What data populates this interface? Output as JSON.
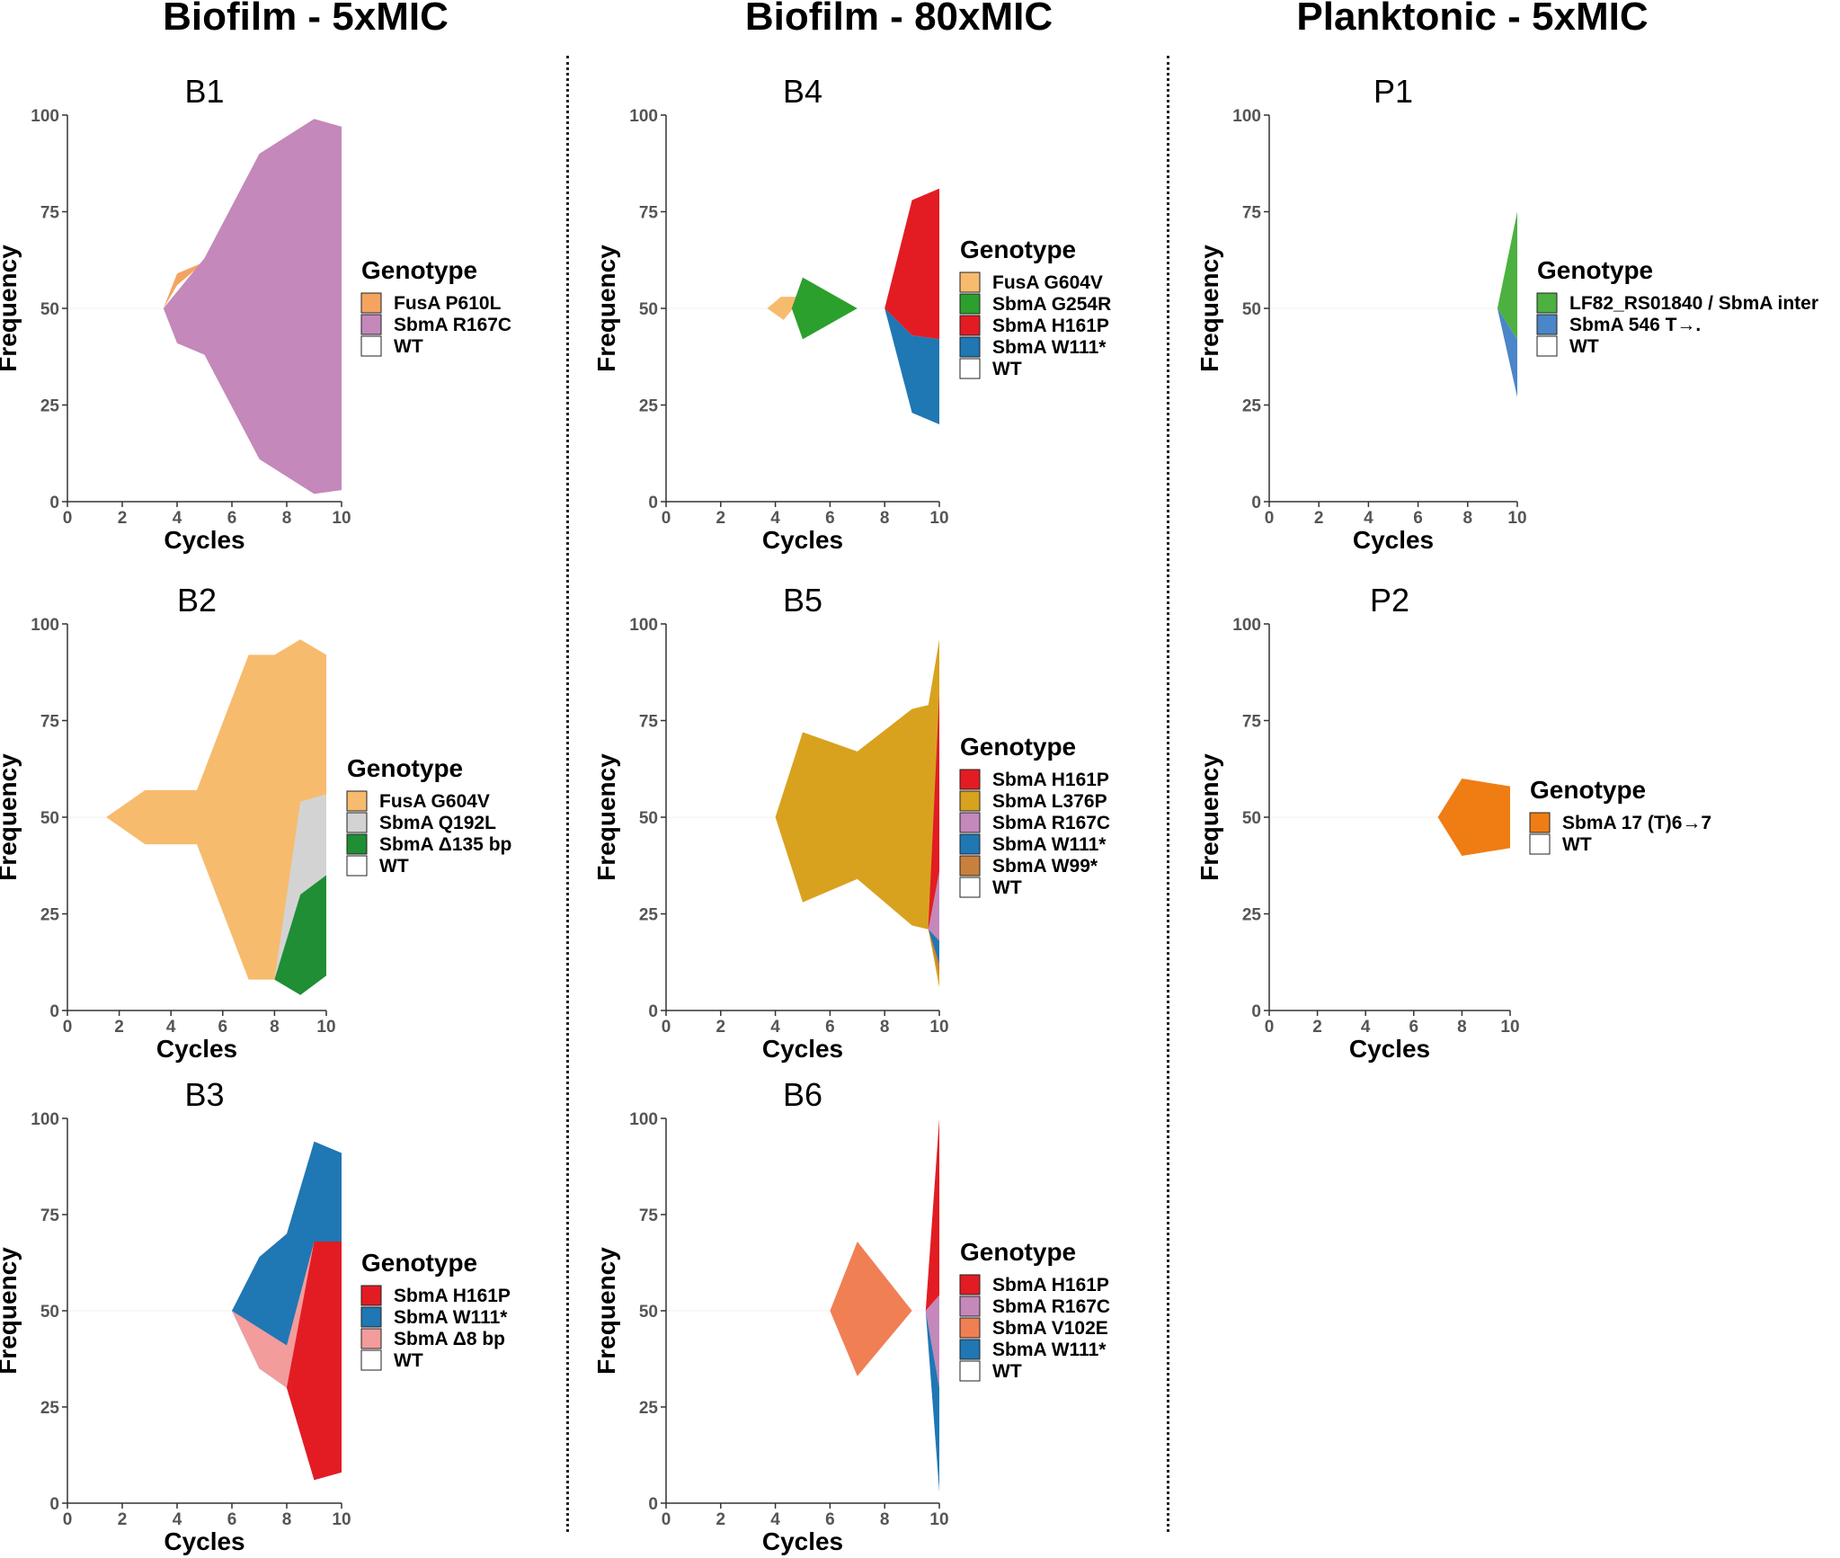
{
  "column_titles": [
    "Biofilm - 5xMIC",
    "Biofilm - 80xMIC",
    "Planktonic - 5xMIC"
  ],
  "chart_data": [
    {
      "type": "area",
      "panel": "B1",
      "title": "B1",
      "xlabel": "Cycles",
      "ylabel": "Frequency",
      "xlim": [
        0,
        10
      ],
      "ylim": [
        0,
        100
      ],
      "xticks": [
        "0",
        "2",
        "4",
        "6",
        "8",
        "10"
      ],
      "yticks": [
        "0",
        "25",
        "50",
        "75",
        "100"
      ],
      "legend_title": "Genotype",
      "legend": [
        {
          "label": "FusA P610L",
          "color": "#f4a460"
        },
        {
          "label": "SbmA R167C",
          "color": "#c488bb"
        },
        {
          "label": "WT",
          "color": "#ffffff"
        }
      ],
      "shapes": [
        {
          "genotype": "FusA P610L",
          "color": "#f4a460",
          "x": [
            3.5,
            4,
            5,
            4,
            3.5
          ],
          "y": [
            50,
            59,
            62,
            56,
            50
          ]
        },
        {
          "genotype": "SbmA R167C",
          "color": "#c488bb",
          "x": [
            3.5,
            5,
            7,
            9,
            10,
            10,
            9,
            7,
            5,
            4,
            3.5
          ],
          "y": [
            50,
            63,
            90,
            99,
            97,
            3,
            2,
            11,
            38,
            41,
            50
          ]
        }
      ]
    },
    {
      "type": "area",
      "panel": "B2",
      "title": "B2",
      "xlabel": "Cycles",
      "ylabel": "Frequency",
      "xlim": [
        0,
        10
      ],
      "ylim": [
        0,
        100
      ],
      "xticks": [
        "0",
        "2",
        "4",
        "6",
        "8",
        "10"
      ],
      "yticks": [
        "0",
        "25",
        "50",
        "75",
        "100"
      ],
      "legend_title": "Genotype",
      "legend": [
        {
          "label": "FusA G604V",
          "color": "#f7bb6e"
        },
        {
          "label": "SbmA Q192L",
          "color": "#d3d3d3"
        },
        {
          "label": "SbmA Δ135 bp",
          "color": "#1f8e34"
        },
        {
          "label": "WT",
          "color": "#ffffff"
        }
      ],
      "shapes": [
        {
          "genotype": "FusA G604V",
          "color": "#f7bb6e",
          "x": [
            1.5,
            3,
            5,
            7,
            8,
            9,
            10,
            10,
            8,
            7,
            5,
            3,
            1.5
          ],
          "y": [
            50,
            57,
            57,
            92,
            92,
            96,
            92,
            9,
            8,
            8,
            43,
            43,
            50
          ]
        },
        {
          "genotype": "SbmA Q192L",
          "color": "#d3d3d3",
          "x": [
            8,
            9,
            10,
            10,
            9,
            8
          ],
          "y": [
            8,
            54,
            56,
            9,
            4,
            8
          ]
        },
        {
          "genotype": "SbmA Δ135 bp",
          "color": "#1f8e34",
          "x": [
            8,
            9,
            10,
            10,
            9,
            8
          ],
          "y": [
            8,
            30,
            35,
            9,
            4,
            8
          ]
        }
      ]
    },
    {
      "type": "area",
      "panel": "B3",
      "title": "B3",
      "xlabel": "Cycles",
      "ylabel": "Frequency",
      "xlim": [
        0,
        10
      ],
      "ylim": [
        0,
        100
      ],
      "xticks": [
        "0",
        "2",
        "4",
        "6",
        "8",
        "10"
      ],
      "yticks": [
        "0",
        "25",
        "50",
        "75",
        "100"
      ],
      "legend_title": "Genotype",
      "legend": [
        {
          "label": "SbmA H161P",
          "color": "#e31c23"
        },
        {
          "label": "SbmA W111*",
          "color": "#1f77b4"
        },
        {
          "label": "SbmA Δ8 bp",
          "color": "#f29c9c"
        },
        {
          "label": "WT",
          "color": "#ffffff"
        }
      ],
      "shapes": [
        {
          "genotype": "SbmA W111*",
          "color": "#1f77b4",
          "x": [
            6,
            7,
            8,
            9,
            10,
            10,
            9,
            8,
            7,
            6
          ],
          "y": [
            50,
            64,
            70,
            94,
            91,
            8,
            6,
            30,
            35,
            50
          ]
        },
        {
          "genotype": "SbmA Δ8 bp",
          "color": "#f29c9c",
          "x": [
            6,
            8,
            9,
            10,
            10,
            9,
            8,
            7,
            6
          ],
          "y": [
            50,
            41,
            68,
            68,
            8,
            6,
            30,
            35,
            50
          ]
        },
        {
          "genotype": "SbmA H161P",
          "color": "#e31c23",
          "x": [
            8,
            9,
            10,
            10,
            9,
            8
          ],
          "y": [
            30,
            68,
            68,
            8,
            6,
            30
          ]
        }
      ]
    },
    {
      "type": "area",
      "panel": "B4",
      "title": "B4",
      "xlabel": "Cycles",
      "ylabel": "Frequency",
      "xlim": [
        0,
        10
      ],
      "ylim": [
        0,
        100
      ],
      "xticks": [
        "0",
        "2",
        "4",
        "6",
        "8",
        "10"
      ],
      "yticks": [
        "0",
        "25",
        "50",
        "75",
        "100"
      ],
      "legend_title": "Genotype",
      "legend": [
        {
          "label": "FusA G604V",
          "color": "#f7bb6e"
        },
        {
          "label": "SbmA G254R",
          "color": "#2ca02c"
        },
        {
          "label": "SbmA H161P",
          "color": "#e31c23"
        },
        {
          "label": "SbmA W111*",
          "color": "#1f77b4"
        },
        {
          "label": "WT",
          "color": "#ffffff"
        }
      ],
      "shapes": [
        {
          "genotype": "FusA G604V",
          "color": "#f7bb6e",
          "x": [
            3.7,
            4.2,
            5,
            4.3,
            3.7
          ],
          "y": [
            50,
            53,
            53,
            47,
            50
          ]
        },
        {
          "genotype": "SbmA G254R",
          "color": "#2ca02c",
          "x": [
            4.6,
            5,
            7,
            5,
            4.6
          ],
          "y": [
            50,
            58,
            50,
            42,
            50
          ]
        },
        {
          "genotype": "SbmA H161P",
          "color": "#e31c23",
          "x": [
            8,
            9,
            10,
            10,
            9,
            8
          ],
          "y": [
            50,
            78,
            81,
            42,
            43,
            50
          ]
        },
        {
          "genotype": "SbmA W111*",
          "color": "#1f77b4",
          "x": [
            8,
            9,
            10,
            10,
            9,
            8
          ],
          "y": [
            50,
            43,
            42,
            20,
            23,
            50
          ]
        }
      ]
    },
    {
      "type": "area",
      "panel": "B5",
      "title": "B5",
      "xlabel": "Cycles",
      "ylabel": "Frequency",
      "xlim": [
        0,
        10
      ],
      "ylim": [
        0,
        100
      ],
      "xticks": [
        "0",
        "2",
        "4",
        "6",
        "8",
        "10"
      ],
      "yticks": [
        "0",
        "25",
        "50",
        "75",
        "100"
      ],
      "legend_title": "Genotype",
      "legend": [
        {
          "label": "SbmA H161P",
          "color": "#e31c23"
        },
        {
          "label": "SbmA L376P",
          "color": "#d8a21f"
        },
        {
          "label": "SbmA R167C",
          "color": "#c488bb"
        },
        {
          "label": "SbmA W111*",
          "color": "#1f77b4"
        },
        {
          "label": "SbmA W99*",
          "color": "#c9803d"
        },
        {
          "label": "WT",
          "color": "#ffffff"
        }
      ],
      "shapes": [
        {
          "genotype": "SbmA L376P",
          "color": "#d8a21f",
          "x": [
            4,
            5,
            7,
            9,
            9.6,
            10,
            10,
            9.6,
            9,
            7,
            5,
            4
          ],
          "y": [
            50,
            72,
            67,
            78,
            79,
            96,
            6,
            21,
            22,
            34,
            28,
            50
          ]
        },
        {
          "genotype": "SbmA H161P",
          "color": "#e31c23",
          "x": [
            9.6,
            10,
            10,
            9.6
          ],
          "y": [
            22,
            82,
            36,
            21
          ]
        },
        {
          "genotype": "SbmA R167C",
          "color": "#c488bb",
          "x": [
            9.6,
            10,
            10,
            9.6
          ],
          "y": [
            21,
            36,
            18,
            21
          ]
        },
        {
          "genotype": "SbmA W111*",
          "color": "#1f77b4",
          "x": [
            9.6,
            10,
            10,
            9.6
          ],
          "y": [
            21,
            18,
            12,
            21
          ]
        },
        {
          "genotype": "SbmA W99*",
          "color": "#c9803d",
          "x": [
            9.6,
            10,
            10,
            9.6
          ],
          "y": [
            21,
            12,
            9,
            21
          ]
        }
      ]
    },
    {
      "type": "area",
      "panel": "B6",
      "title": "B6",
      "xlabel": "Cycles",
      "ylabel": "Frequency",
      "xlim": [
        0,
        10
      ],
      "ylim": [
        0,
        100
      ],
      "xticks": [
        "0",
        "2",
        "4",
        "6",
        "8",
        "10"
      ],
      "yticks": [
        "0",
        "25",
        "50",
        "75",
        "100"
      ],
      "legend_title": "Genotype",
      "legend": [
        {
          "label": "SbmA H161P",
          "color": "#e31c23"
        },
        {
          "label": "SbmA R167C",
          "color": "#c488bb"
        },
        {
          "label": "SbmA V102E",
          "color": "#f07f54"
        },
        {
          "label": "SbmA W111*",
          "color": "#1f77b4"
        },
        {
          "label": "WT",
          "color": "#ffffff"
        }
      ],
      "shapes": [
        {
          "genotype": "SbmA V102E",
          "color": "#f07f54",
          "x": [
            6,
            7,
            9,
            7,
            6
          ],
          "y": [
            50,
            68,
            50,
            33,
            50
          ]
        },
        {
          "genotype": "SbmA H161P",
          "color": "#e31c23",
          "x": [
            9.5,
            10,
            10,
            9.5
          ],
          "y": [
            50,
            100,
            54,
            50
          ]
        },
        {
          "genotype": "SbmA R167C",
          "color": "#c488bb",
          "x": [
            9.5,
            10,
            10,
            9.5
          ],
          "y": [
            50,
            54,
            30,
            50
          ]
        },
        {
          "genotype": "SbmA W111*",
          "color": "#1f77b4",
          "x": [
            9.5,
            10,
            10,
            9.5
          ],
          "y": [
            50,
            30,
            3,
            50
          ]
        }
      ]
    },
    {
      "type": "area",
      "panel": "P1",
      "title": "P1",
      "xlabel": "Cycles",
      "ylabel": "Frequency",
      "xlim": [
        0,
        10
      ],
      "ylim": [
        0,
        100
      ],
      "xticks": [
        "0",
        "2",
        "4",
        "6",
        "8",
        "10"
      ],
      "yticks": [
        "0",
        "25",
        "50",
        "75",
        "100"
      ],
      "legend_title": "Genotype",
      "legend": [
        {
          "label": "LF82_RS01840 / SbmA inter",
          "color": "#4cb140"
        },
        {
          "label": "SbmA 546 T→.",
          "color": "#4a86c8"
        },
        {
          "label": "WT",
          "color": "#ffffff"
        }
      ],
      "shapes": [
        {
          "genotype": "LF82_RS01840 / SbmA inter",
          "color": "#4cb140",
          "x": [
            9.2,
            10,
            10,
            9.2
          ],
          "y": [
            50,
            75,
            42,
            50
          ]
        },
        {
          "genotype": "SbmA 546 T→.",
          "color": "#4a86c8",
          "x": [
            9.2,
            10,
            10,
            9.2
          ],
          "y": [
            50,
            42,
            27,
            50
          ]
        }
      ]
    },
    {
      "type": "area",
      "panel": "P2",
      "title": "P2",
      "xlabel": "Cycles",
      "ylabel": "Frequency",
      "xlim": [
        0,
        10
      ],
      "ylim": [
        0,
        100
      ],
      "xticks": [
        "0",
        "2",
        "4",
        "6",
        "8",
        "10"
      ],
      "yticks": [
        "0",
        "25",
        "50",
        "75",
        "100"
      ],
      "legend_title": "Genotype",
      "legend": [
        {
          "label": "SbmA 17 (T)6→7",
          "color": "#ef7d14"
        },
        {
          "label": "WT",
          "color": "#ffffff"
        }
      ],
      "shapes": [
        {
          "genotype": "SbmA 17 (T)6→7",
          "color": "#ef7d14",
          "x": [
            7,
            8,
            10,
            10,
            8,
            7
          ],
          "y": [
            50,
            60,
            58,
            42,
            40,
            50
          ]
        }
      ]
    }
  ]
}
